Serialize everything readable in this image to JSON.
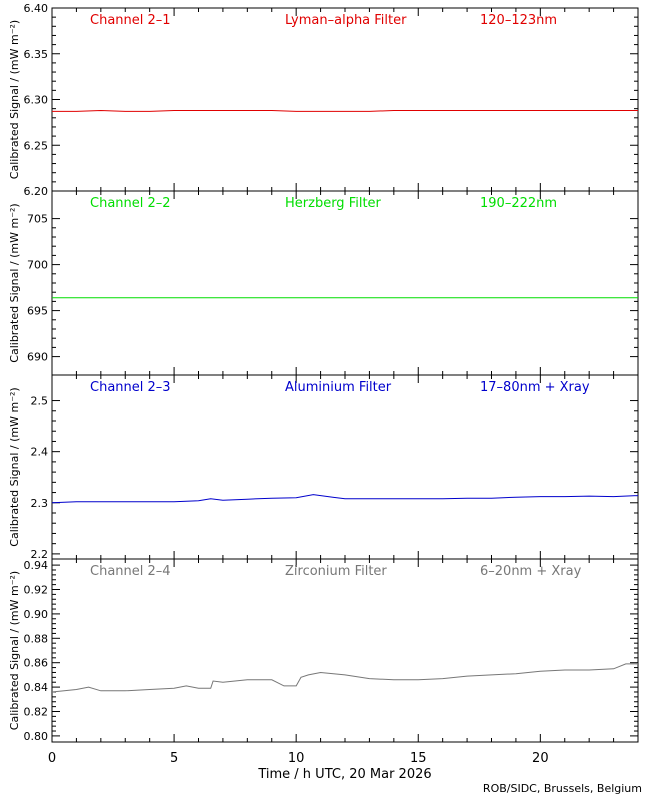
{
  "chart_data": [
    {
      "type": "line",
      "channel": "Channel 2–1",
      "filter": "Lyman–alpha Filter",
      "band": "120–123nm",
      "color": "#e00000",
      "ylabel": "Calibrated Signal / (mW m⁻²)",
      "ylim": [
        6.2,
        6.4
      ],
      "yticks": [
        6.2,
        6.25,
        6.3,
        6.35,
        6.4
      ],
      "ytick_labels": [
        "6.20",
        "6.25",
        "6.30",
        "6.35",
        "6.40"
      ],
      "series": [
        {
          "x": [
            0,
            1,
            2,
            3,
            4,
            5,
            6,
            7,
            8,
            9,
            10,
            11,
            12,
            13,
            14,
            15,
            16,
            17,
            18,
            19,
            20,
            21,
            22,
            23,
            24
          ],
          "values": [
            6.287,
            6.287,
            6.288,
            6.287,
            6.287,
            6.288,
            6.288,
            6.288,
            6.288,
            6.288,
            6.287,
            6.287,
            6.287,
            6.287,
            6.288,
            6.288,
            6.288,
            6.288,
            6.288,
            6.288,
            6.288,
            6.288,
            6.288,
            6.288,
            6.288
          ]
        }
      ]
    },
    {
      "type": "line",
      "channel": "Channel 2–2",
      "filter": "Herzberg Filter",
      "band": "190–222nm",
      "color": "#00dd00",
      "ylabel": "Calibrated Signal / (mW m⁻²)",
      "ylim": [
        688,
        708
      ],
      "yticks": [
        690,
        695,
        700,
        705
      ],
      "ytick_labels": [
        "690",
        "695",
        "700",
        "705"
      ],
      "series": [
        {
          "x": [
            0,
            4,
            8,
            12,
            16,
            20,
            24
          ],
          "values": [
            696.4,
            696.4,
            696.4,
            696.4,
            696.4,
            696.4,
            696.4
          ]
        }
      ]
    },
    {
      "type": "line",
      "channel": "Channel 2–3",
      "filter": "Aluminium Filter",
      "band": "17–80nm + Xray",
      "color": "#0000cc",
      "ylabel": "Calibrated Signal / (mW m⁻²)",
      "ylim": [
        2.19,
        2.55
      ],
      "yticks": [
        2.2,
        2.3,
        2.4,
        2.5
      ],
      "ytick_labels": [
        "2.2",
        "2.3",
        "2.4",
        "2.5"
      ],
      "series": [
        {
          "x": [
            0,
            1,
            2,
            3,
            4,
            5,
            6,
            6.5,
            7,
            8,
            9,
            10,
            10.7,
            11.5,
            12,
            13,
            14,
            15,
            16,
            17,
            18,
            19,
            20,
            21,
            22,
            23,
            24
          ],
          "values": [
            2.3,
            2.302,
            2.302,
            2.302,
            2.302,
            2.302,
            2.304,
            2.308,
            2.305,
            2.307,
            2.309,
            2.31,
            2.316,
            2.311,
            2.308,
            2.308,
            2.308,
            2.308,
            2.308,
            2.309,
            2.309,
            2.311,
            2.312,
            2.312,
            2.313,
            2.312,
            2.314
          ]
        }
      ]
    },
    {
      "type": "line",
      "channel": "Channel 2–4",
      "filter": "Zirconium Filter",
      "band": "6–20nm + Xray",
      "color": "#777777",
      "ylabel": "Calibrated Signal / (mW m⁻²)",
      "ylim": [
        0.795,
        0.945
      ],
      "yticks": [
        0.8,
        0.82,
        0.84,
        0.86,
        0.88,
        0.9,
        0.92,
        0.94
      ],
      "ytick_labels": [
        "0.80",
        "0.82",
        "0.84",
        "0.86",
        "0.88",
        "0.90",
        "0.92",
        "0.94"
      ],
      "series": [
        {
          "x": [
            0,
            0.5,
            1,
            1.5,
            2,
            3,
            4,
            5,
            5.5,
            6,
            6.5,
            6.6,
            7,
            8,
            9,
            9.5,
            10,
            10.2,
            10.5,
            11,
            12,
            13,
            14,
            15,
            16,
            17,
            18,
            19,
            20,
            21,
            22,
            23,
            23.5,
            24
          ],
          "values": [
            0.836,
            0.837,
            0.838,
            0.84,
            0.837,
            0.837,
            0.838,
            0.839,
            0.841,
            0.839,
            0.839,
            0.845,
            0.844,
            0.846,
            0.846,
            0.841,
            0.841,
            0.848,
            0.85,
            0.852,
            0.85,
            0.847,
            0.846,
            0.846,
            0.847,
            0.849,
            0.85,
            0.851,
            0.853,
            0.854,
            0.854,
            0.855,
            0.859,
            0.859
          ]
        }
      ]
    }
  ],
  "xaxis": {
    "label": "Time / h UTC, 20 Mar 2026",
    "xlim": [
      0,
      24
    ],
    "ticks": [
      0,
      5,
      10,
      15,
      20
    ],
    "tick_labels": [
      "0",
      "5",
      "10",
      "15",
      "20"
    ]
  },
  "credit": "ROB/SIDC, Brussels, Belgium"
}
